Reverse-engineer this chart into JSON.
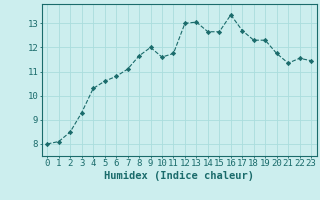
{
  "x": [
    0,
    1,
    2,
    3,
    4,
    5,
    6,
    7,
    8,
    9,
    10,
    11,
    12,
    13,
    14,
    15,
    16,
    17,
    18,
    19,
    20,
    21,
    22,
    23
  ],
  "y": [
    8.0,
    8.1,
    8.5,
    9.3,
    10.3,
    10.6,
    10.8,
    11.1,
    11.65,
    12.0,
    11.6,
    11.75,
    13.0,
    13.05,
    12.65,
    12.65,
    13.35,
    12.7,
    12.3,
    12.3,
    11.75,
    11.35,
    11.55,
    11.45
  ],
  "line_color": "#1a6b6b",
  "marker": "D",
  "marker_size": 2.2,
  "bg_color": "#cceeee",
  "grid_color": "#aadddd",
  "axis_color": "#1a6b6b",
  "xlabel": "Humidex (Indice chaleur)",
  "xlabel_fontsize": 7.5,
  "tick_fontsize": 6.5,
  "xlim": [
    -0.5,
    23.5
  ],
  "ylim": [
    7.5,
    13.8
  ],
  "yticks": [
    8,
    9,
    10,
    11,
    12,
    13
  ],
  "xticks": [
    0,
    1,
    2,
    3,
    4,
    5,
    6,
    7,
    8,
    9,
    10,
    11,
    12,
    13,
    14,
    15,
    16,
    17,
    18,
    19,
    20,
    21,
    22,
    23
  ]
}
